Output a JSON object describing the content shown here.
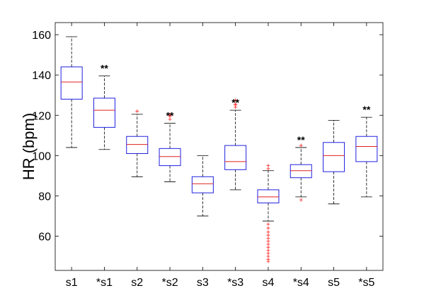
{
  "chart_data": {
    "type": "boxplot",
    "title": "",
    "xlabel": "",
    "ylabel": "HR (bpm)",
    "ylim": [
      43,
      166
    ],
    "y_ticks": [
      60,
      80,
      100,
      120,
      140,
      160
    ],
    "grid": false,
    "colors": {
      "box": "#2020e0",
      "median": "#e02020",
      "whisker": "#000000",
      "outlier": "#ff2020",
      "axis": "#000000"
    },
    "categories": [
      "s1",
      "*s1",
      "s2",
      "*s2",
      "s3",
      "*s3",
      "s4",
      "*s4",
      "s5",
      "*s5"
    ],
    "boxes": [
      {
        "label": "s1",
        "whisker_low": 104,
        "q1": 128,
        "median": 136.5,
        "q3": 144,
        "whisker_high": 159,
        "outliers": [],
        "annotation": ""
      },
      {
        "label": "*s1",
        "whisker_low": 103,
        "q1": 114,
        "median": 122.5,
        "q3": 128.5,
        "whisker_high": 139.5,
        "outliers": [],
        "annotation": "**"
      },
      {
        "label": "s2",
        "whisker_low": 89.5,
        "q1": 101,
        "median": 105.5,
        "q3": 109.5,
        "whisker_high": 120.5,
        "outliers": [
          122
        ],
        "annotation": ""
      },
      {
        "label": "*s2",
        "whisker_low": 87,
        "q1": 95,
        "median": 99.5,
        "q3": 103.5,
        "whisker_high": 116,
        "outliers": [
          118,
          119.5,
          120.5
        ],
        "annotation": "**"
      },
      {
        "label": "s3",
        "whisker_low": 70,
        "q1": 81.5,
        "median": 86,
        "q3": 89.5,
        "whisker_high": 100,
        "outliers": [],
        "annotation": ""
      },
      {
        "label": "*s3",
        "whisker_low": 83,
        "q1": 93,
        "median": 97,
        "q3": 105,
        "whisker_high": 122.5,
        "outliers": [
          124,
          125,
          125.5,
          127.5
        ],
        "annotation": "**"
      },
      {
        "label": "s4",
        "whisker_low": 67.5,
        "q1": 76.5,
        "median": 79.5,
        "q3": 83,
        "whisker_high": 92.5,
        "outliers": [
          93.5,
          95,
          66,
          64,
          62,
          60.5,
          59,
          57.5,
          56,
          54.5,
          53,
          51.5,
          50,
          48.5,
          47.5
        ],
        "annotation": ""
      },
      {
        "label": "*s4",
        "whisker_low": 79.5,
        "q1": 89,
        "median": 92.5,
        "q3": 95.5,
        "whisker_high": 104,
        "outliers": [
          105,
          78
        ],
        "annotation": "**"
      },
      {
        "label": "s5",
        "whisker_low": 76,
        "q1": 92,
        "median": 100,
        "q3": 106.5,
        "whisker_high": 117.5,
        "outliers": [],
        "annotation": ""
      },
      {
        "label": "*s5",
        "whisker_low": 79.5,
        "q1": 97,
        "median": 104.5,
        "q3": 109.5,
        "whisker_high": 119,
        "outliers": [],
        "annotation": "**"
      }
    ]
  }
}
